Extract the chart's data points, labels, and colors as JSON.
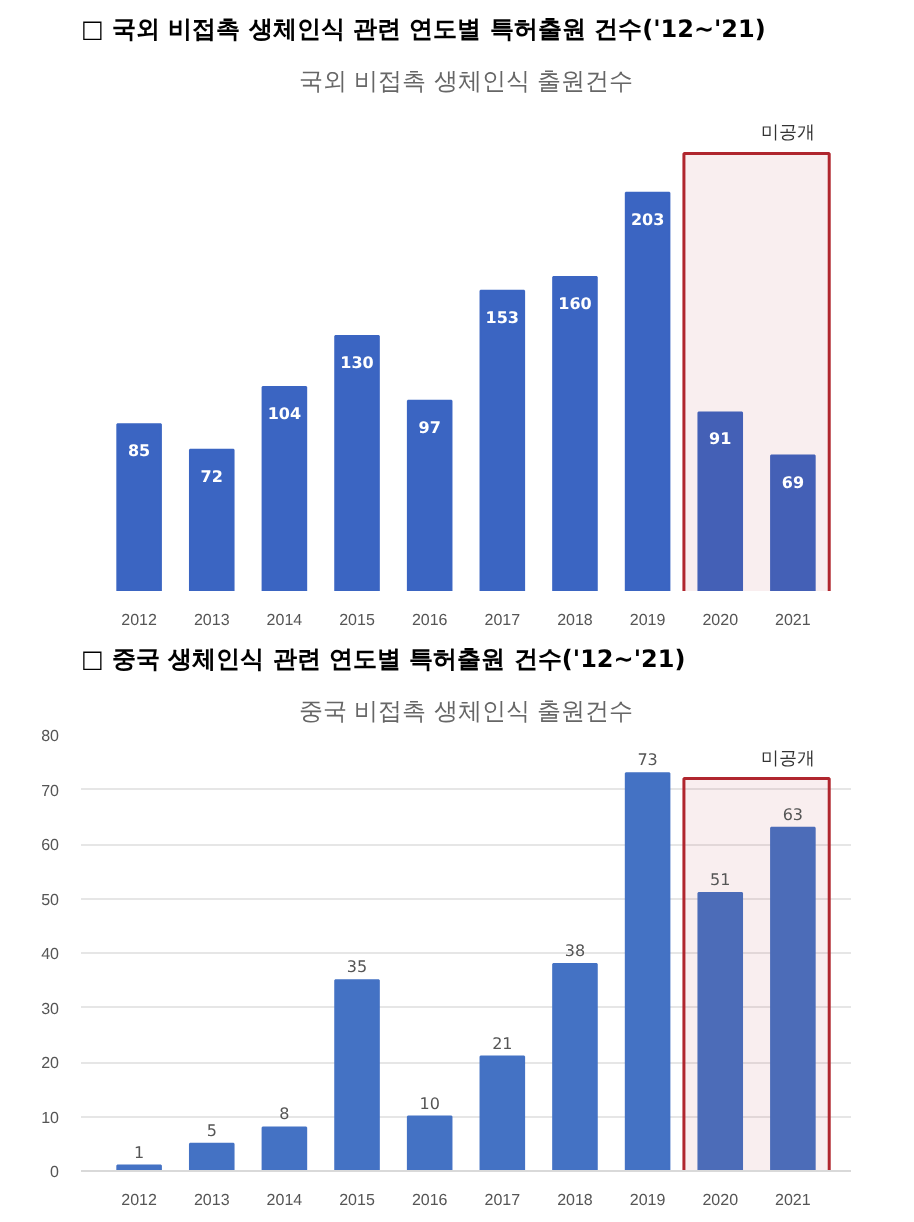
{
  "chart_data": [
    {
      "type": "bar",
      "title": "□ 국외 비접촉 생체인식 관련 연도별 특허출원 건수('12~'21)",
      "subtitle": "국외 비접촉 생체인식 출원건수",
      "categories": [
        "2012",
        "2013",
        "2014",
        "2015",
        "2016",
        "2017",
        "2018",
        "2019",
        "2020",
        "2021"
      ],
      "values": [
        85,
        72,
        104,
        130,
        97,
        153,
        160,
        203,
        91,
        69
      ],
      "color": "#3b65c2",
      "data_labels": true,
      "grid": false,
      "bands": [
        {
          "axis": "x",
          "from": "2020",
          "to": "2021",
          "label": "미공개",
          "color": "#b0262e"
        }
      ]
    },
    {
      "type": "bar",
      "title": "□ 중국 생체인식 관련 연도별 특허출원 건수('12~'21)",
      "subtitle": "중국 비접촉 생체인식 출원건수",
      "categories": [
        "2012",
        "2013",
        "2014",
        "2015",
        "2016",
        "2017",
        "2018",
        "2019",
        "2020",
        "2021"
      ],
      "values": [
        1,
        5,
        8,
        35,
        10,
        21,
        38,
        73,
        51,
        63
      ],
      "color": "#4472c4",
      "data_labels": true,
      "ylim": [
        0,
        80
      ],
      "yticks": [
        0,
        10,
        20,
        30,
        40,
        50,
        60,
        70,
        80
      ],
      "grid": "y",
      "bands": [
        {
          "axis": "x",
          "from": "2020",
          "to": "2021",
          "label": "미공개",
          "color": "#b0262e"
        }
      ]
    }
  ]
}
